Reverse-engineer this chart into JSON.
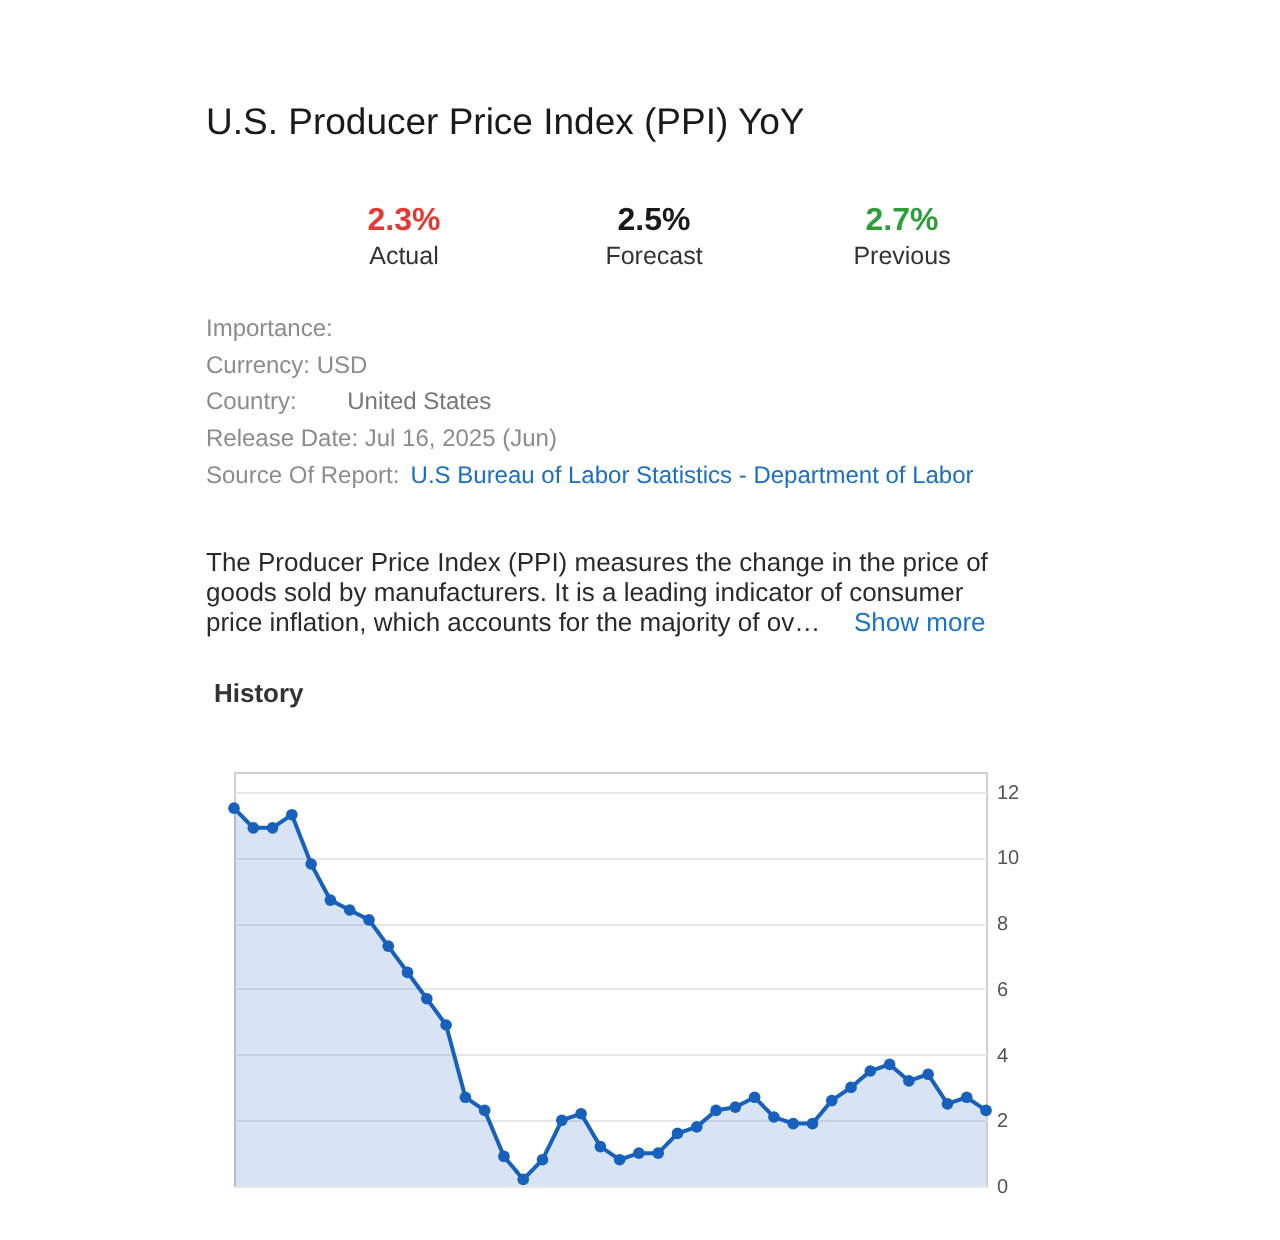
{
  "chart_data": [
    {
      "type": "other",
      "title": "U.S. Producer Price Index (PPI) YoY",
      "annotations": [
        "2.3%",
        "Actual",
        "2.5%",
        "Forecast",
        "2.7%",
        "Previous",
        "Importance:",
        "Currency: USD",
        "Country:",
        "United States",
        "Release Date: Jul 16, 2025 (Jun)",
        "Source Of Report:",
        "U.S Bureau of Labor Statistics - Department of Labor",
        "The Producer Price Index (PPI) measures the change in the price of goods sold by manufacturers. It is a leading indicator of consumer price inflation, which accounts for the majority of ov…",
        "Show more"
      ]
    },
    {
      "type": "area",
      "title": "History",
      "categories": [
        null,
        null,
        null,
        null,
        null,
        null,
        null,
        null,
        null,
        null,
        null,
        null,
        null,
        null,
        null,
        null,
        null,
        null,
        null,
        null,
        null,
        null,
        null,
        null,
        null,
        null,
        null,
        null,
        null,
        null,
        null,
        null,
        null,
        null,
        null,
        null,
        null,
        null,
        null,
        null
      ],
      "series": [
        {
          "color": "#1760bc",
          "values": [
            11.5,
            10.9,
            10.9,
            11.3,
            9.8,
            8.7,
            8.4,
            8.1,
            7.3,
            6.5,
            5.7,
            4.9,
            2.7,
            2.3,
            0.9,
            0.2,
            0.8,
            2.0,
            2.2,
            1.2,
            0.8,
            1.0,
            1.0,
            1.6,
            1.8,
            2.3,
            2.4,
            2.7,
            2.1,
            1.9,
            1.9,
            2.6,
            3.0,
            3.5,
            3.7,
            3.2,
            3.4,
            2.5,
            2.7,
            2.3
          ]
        }
      ],
      "ylim": [
        0,
        12.6
      ],
      "yticks": [
        0,
        2,
        4,
        6,
        8,
        10,
        12
      ],
      "grid": "y",
      "tick_labels": "y",
      "marker": "circle"
    }
  ]
}
